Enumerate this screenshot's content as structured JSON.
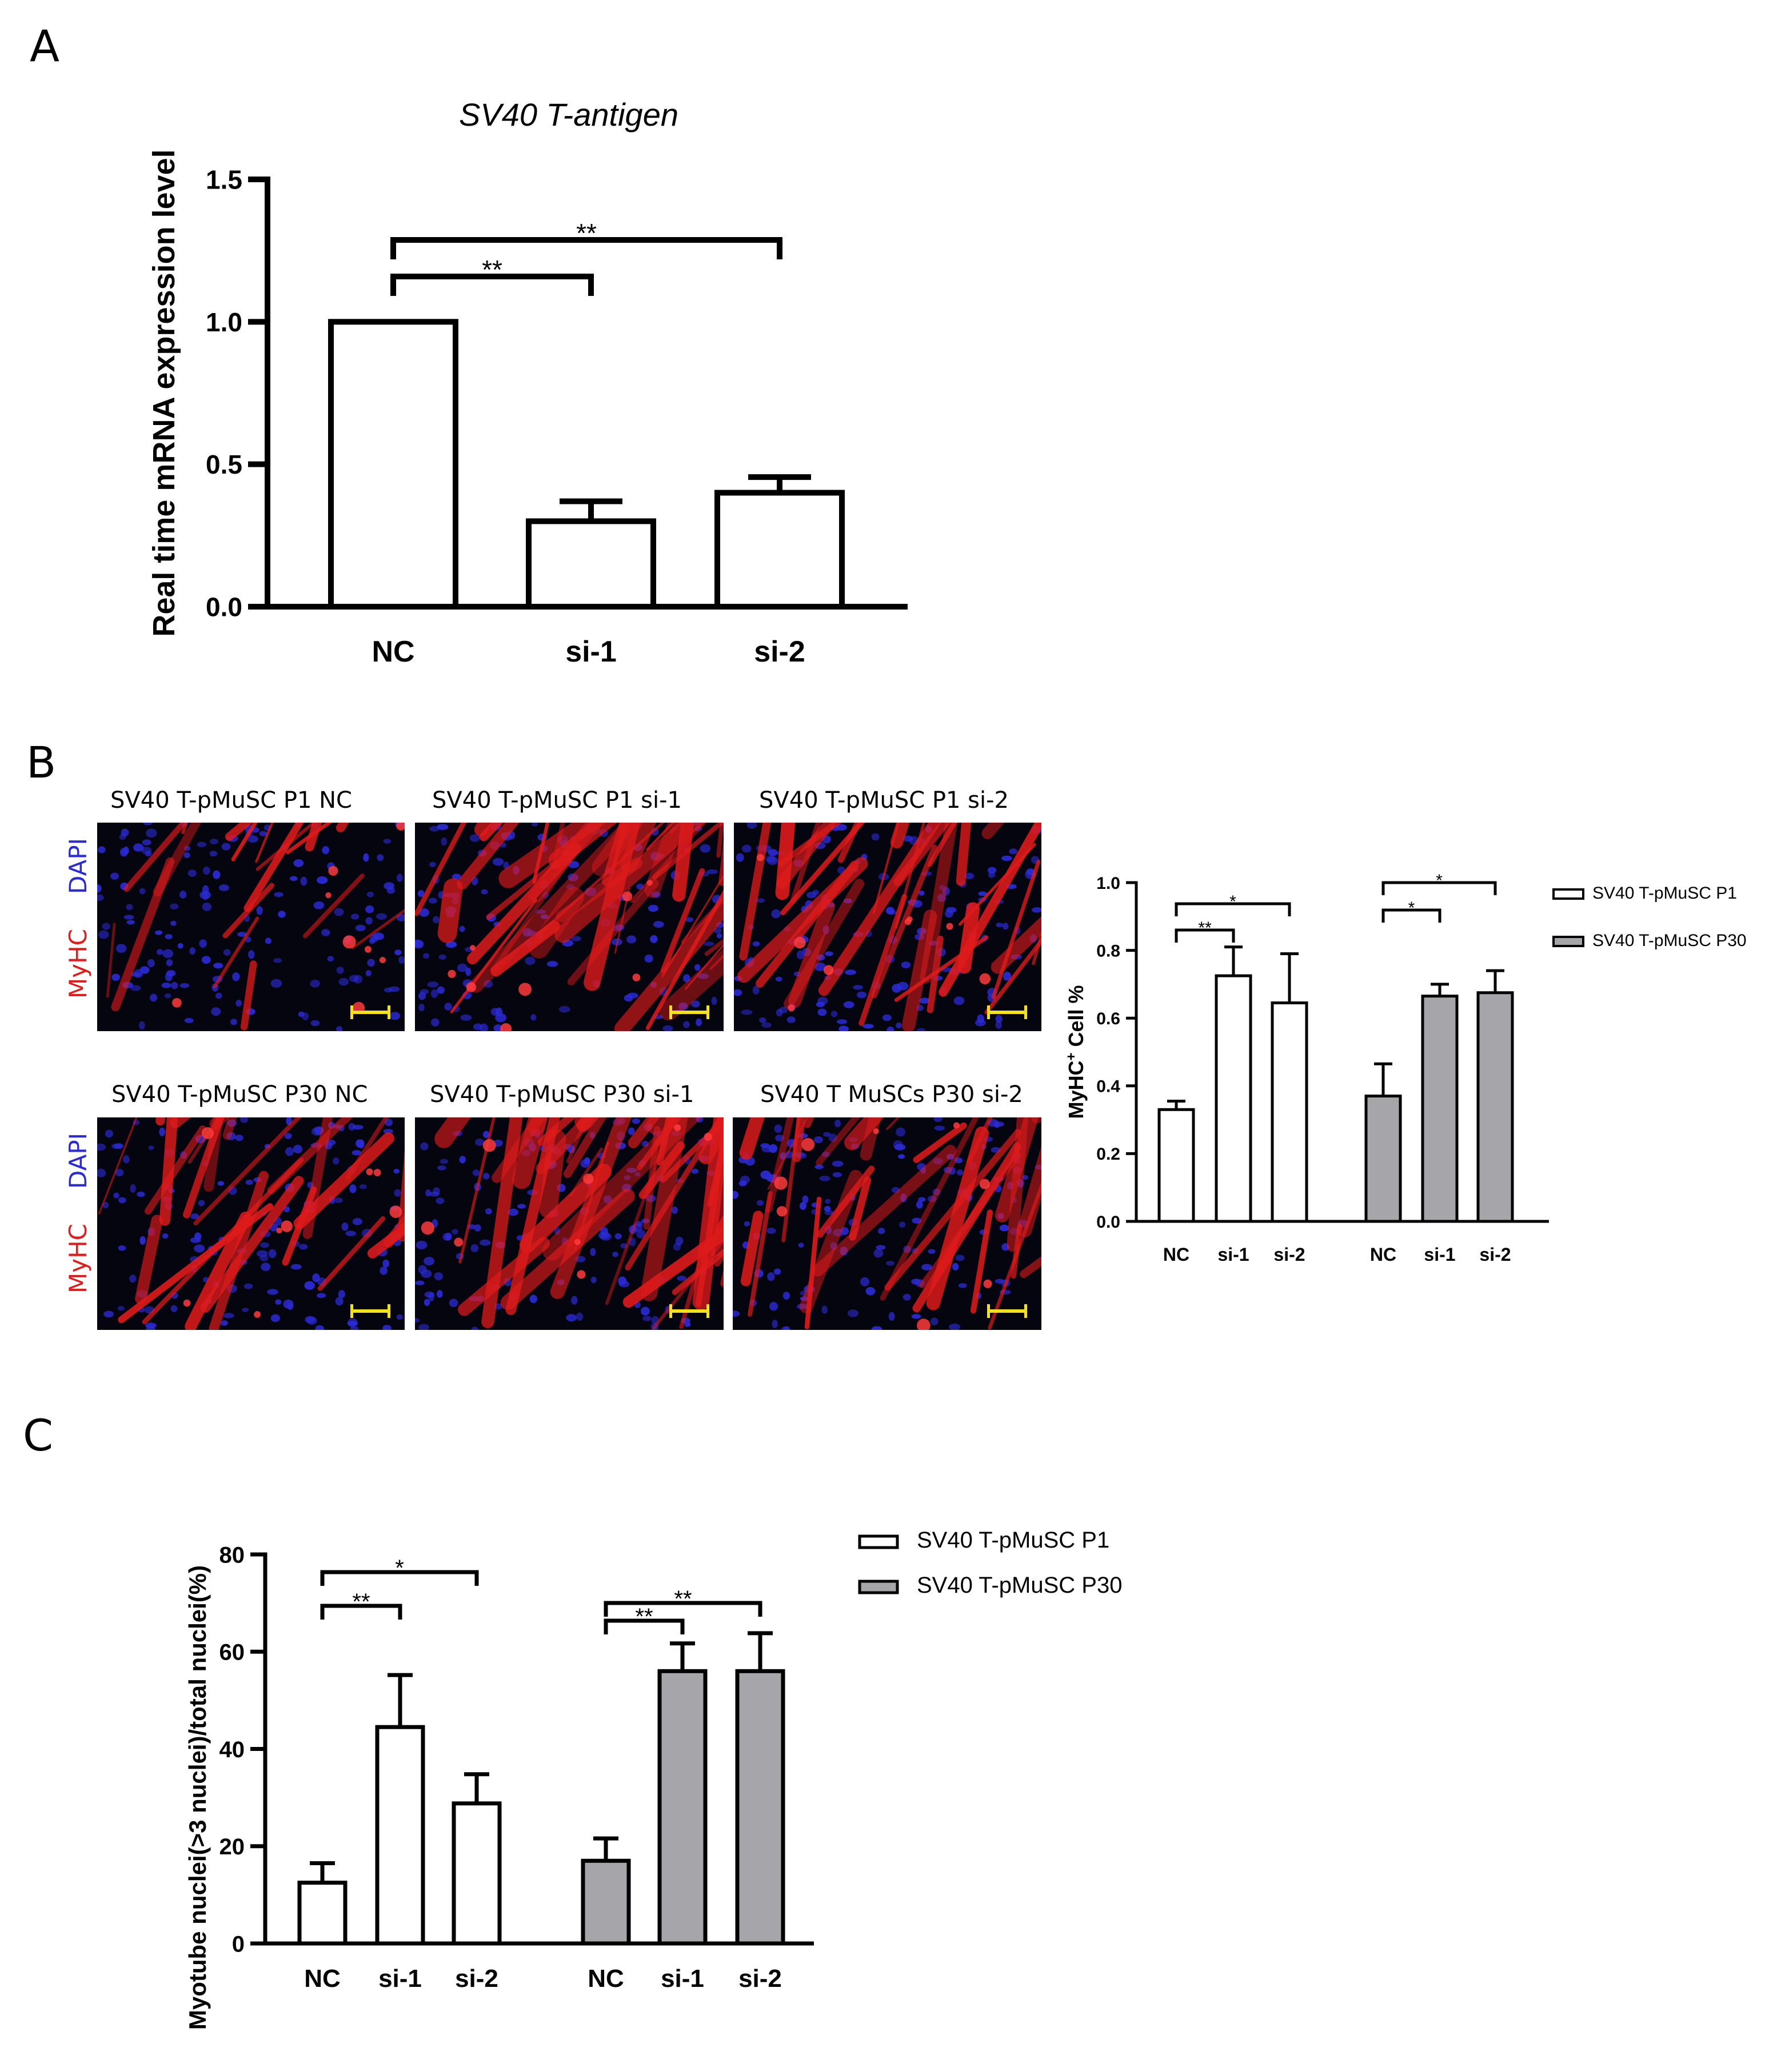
{
  "panels": {
    "a": "A",
    "b": "B",
    "c": "C"
  },
  "colors": {
    "white_bar": "#ffffff",
    "grey_bar": "#a6a6aa",
    "dapi": "#2b2bd6",
    "myhc": "#e01b1b",
    "scale_bar": "#f3e21a"
  },
  "panel_a": {
    "title": "SV40 T-antigen",
    "sig": [
      "**",
      "**"
    ]
  },
  "panel_b": {
    "images": [
      {
        "title": "SV40 T-pMuSC P1 NC",
        "stain_1": "DAPI",
        "stain_2": "MyHC",
        "myotube_density": 0.25
      },
      {
        "title": "SV40 T-pMuSC  P1 si-1",
        "myotube_density": 0.9
      },
      {
        "title": "SV40 T-pMuSC P1 si-2",
        "myotube_density": 0.6
      },
      {
        "title": "SV40 T-pMuSC P30 NC",
        "stain_1": "DAPI",
        "stain_2": "MyHC",
        "myotube_density": 0.45
      },
      {
        "title": "SV40 T-pMuSC P30 si-1",
        "myotube_density": 0.9
      },
      {
        "title": "SV40 T MuSCs P30 si-2",
        "myotube_density": 0.6
      }
    ],
    "legend": [
      "SV40 T-pMuSC P1",
      "SV40 T-pMuSC P30"
    ],
    "sig": [
      "**",
      "*",
      "*",
      "*"
    ]
  },
  "panel_c": {
    "legend": [
      "SV40 T-pMuSC P1",
      "SV40 T-pMuSC P30"
    ],
    "sig": [
      "**",
      "*",
      "**",
      "**"
    ]
  },
  "chart_data": [
    {
      "type": "bar",
      "panel": "A",
      "title": "SV40 T-antigen",
      "ylabel": "Real time mRNA expression level",
      "xlabel": "",
      "ylim": [
        0,
        1.5
      ],
      "yticks": [
        "0.0",
        "0.5",
        "1.0",
        "1.5"
      ],
      "categories": [
        "NC",
        "si-1",
        "si-2"
      ],
      "values": [
        1.0,
        0.3,
        0.4
      ],
      "errors": [
        0,
        0.07,
        0.055
      ],
      "significance": [
        {
          "from": "NC",
          "to": "si-1",
          "label": "**"
        },
        {
          "from": "NC",
          "to": "si-2",
          "label": "**"
        }
      ]
    },
    {
      "type": "bar",
      "panel": "B",
      "ylabel": "MyHC⁺ Cell %",
      "xlabel": "",
      "ylim": [
        0,
        1.0
      ],
      "yticks": [
        "0.0",
        "0.2",
        "0.4",
        "0.6",
        "0.8",
        "1.0"
      ],
      "categories": [
        "NC",
        "si-1",
        "si-2"
      ],
      "series": [
        {
          "name": "SV40 T-pMuSC P1",
          "values": [
            0.33,
            0.725,
            0.645
          ],
          "errors": [
            0.025,
            0.085,
            0.145
          ]
        },
        {
          "name": "SV40 T-pMuSC P30",
          "values": [
            0.37,
            0.665,
            0.675
          ],
          "errors": [
            0.095,
            0.035,
            0.065
          ]
        }
      ],
      "significance": [
        {
          "series": "SV40 T-pMuSC P1",
          "from": "NC",
          "to": "si-1",
          "label": "**"
        },
        {
          "series": "SV40 T-pMuSC P1",
          "from": "NC",
          "to": "si-2",
          "label": "*"
        },
        {
          "series": "SV40 T-pMuSC P30",
          "from": "NC",
          "to": "si-1",
          "label": "*"
        },
        {
          "series": "SV40 T-pMuSC P30",
          "from": "NC",
          "to": "si-2",
          "label": "*"
        }
      ],
      "legend_position": "right"
    },
    {
      "type": "bar",
      "panel": "C",
      "ylabel": "Myotube nuclei(>3 nuclei)/total nuclei(%)",
      "xlabel": "",
      "ylim": [
        0,
        80
      ],
      "yticks": [
        "0",
        "20",
        "40",
        "60",
        "80"
      ],
      "categories": [
        "NC",
        "si-1",
        "si-2"
      ],
      "series": [
        {
          "name": "SV40 T-pMuSC P1",
          "values": [
            12.5,
            44.5,
            28.8
          ],
          "errors": [
            4,
            10.7,
            6
          ]
        },
        {
          "name": "SV40 T-pMuSC P30",
          "values": [
            17,
            56,
            56
          ],
          "errors": [
            4.6,
            5.7,
            7.8
          ]
        }
      ],
      "significance": [
        {
          "series": "SV40 T-pMuSC P1",
          "from": "NC",
          "to": "si-1",
          "label": "**"
        },
        {
          "series": "SV40 T-pMuSC P1",
          "from": "NC",
          "to": "si-2",
          "label": "*"
        },
        {
          "series": "SV40 T-pMuSC P30",
          "from": "NC",
          "to": "si-1",
          "label": "**"
        },
        {
          "series": "SV40 T-pMuSC P30",
          "from": "NC",
          "to": "si-2",
          "label": "**"
        }
      ],
      "legend_position": "top-right"
    }
  ]
}
